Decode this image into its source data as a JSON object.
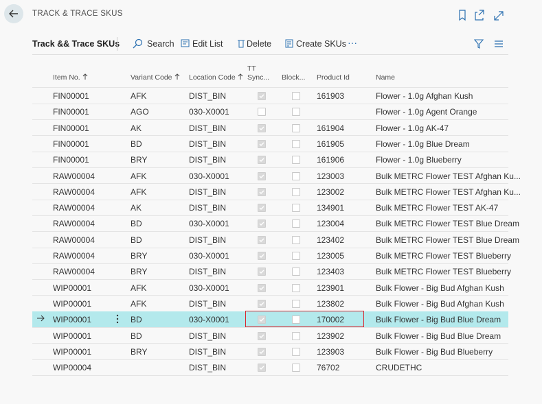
{
  "header": {
    "title": "TRACK & TRACE SKUS"
  },
  "toolbar": {
    "page_name": "Track && Trace SKUs",
    "actions": [
      "Search",
      "Edit List",
      "Delete",
      "Create SKUs"
    ]
  },
  "table": {
    "columns": [
      {
        "label": "Item No.",
        "sorted": true
      },
      {
        "label": "Variant Code",
        "sorted": true
      },
      {
        "label": "Location Code",
        "sorted": true
      },
      {
        "label": "TT Sync...",
        "sorted": false
      },
      {
        "label": "Block...",
        "sorted": false
      },
      {
        "label": "Product Id",
        "sorted": false
      },
      {
        "label": "Name",
        "sorted": false
      }
    ],
    "selected_row": 14,
    "rows": [
      [
        "FIN00001",
        "AFK",
        "DIST_BIN",
        true,
        false,
        "161903",
        "Flower - 1.0g Afghan Kush"
      ],
      [
        "FIN00001",
        "AGO",
        "030-X0001",
        false,
        false,
        null,
        "Flower - 1.0g Agent Orange"
      ],
      [
        "FIN00001",
        "AK",
        "DIST_BIN",
        true,
        false,
        "161904",
        "Flower - 1.0g AK-47"
      ],
      [
        "FIN00001",
        "BD",
        "DIST_BIN",
        true,
        false,
        "161905",
        "Flower - 1.0g Blue Dream"
      ],
      [
        "FIN00001",
        "BRY",
        "DIST_BIN",
        true,
        false,
        "161906",
        "Flower - 1.0g Blueberry"
      ],
      [
        "RAW00004",
        "AFK",
        "030-X0001",
        true,
        false,
        "123003",
        "Bulk METRC Flower TEST Afghan Ku..."
      ],
      [
        "RAW00004",
        "AFK",
        "DIST_BIN",
        true,
        false,
        "123002",
        "Bulk METRC Flower TEST Afghan Ku..."
      ],
      [
        "RAW00004",
        "AK",
        "DIST_BIN",
        true,
        false,
        "134901",
        "Bulk METRC Flower TEST AK-47"
      ],
      [
        "RAW00004",
        "BD",
        "030-X0001",
        true,
        false,
        "123004",
        "Bulk METRC Flower TEST Blue Dream"
      ],
      [
        "RAW00004",
        "BD",
        "DIST_BIN",
        true,
        false,
        "123402",
        "Bulk METRC Flower TEST Blue Dream"
      ],
      [
        "RAW00004",
        "BRY",
        "030-X0001",
        true,
        false,
        "123005",
        "Bulk METRC Flower TEST Blueberry"
      ],
      [
        "RAW00004",
        "BRY",
        "DIST_BIN",
        true,
        false,
        "123403",
        "Bulk METRC Flower TEST Blueberry"
      ],
      [
        "WIP00001",
        "AFK",
        "030-X0001",
        true,
        false,
        "123901",
        "Bulk Flower - Big Bud Afghan Kush"
      ],
      [
        "WIP00001",
        "AFK",
        "DIST_BIN",
        true,
        false,
        "123802",
        "Bulk Flower - Big Bud Afghan Kush"
      ],
      [
        "WIP00001",
        "BD",
        "030-X0001",
        true,
        false,
        "170002",
        "Bulk Flower - Big Bud Blue Dream"
      ],
      [
        "WIP00001",
        "BD",
        "DIST_BIN",
        true,
        false,
        "123902",
        "Bulk Flower - Big Bud Blue Dream"
      ],
      [
        "WIP00001",
        "BRY",
        "DIST_BIN",
        true,
        false,
        "123903",
        "Bulk Flower - Big Bud Blueberry"
      ],
      [
        "WIP00004",
        null,
        "DIST_BIN",
        true,
        false,
        "76702",
        "CRUDETHC"
      ]
    ]
  }
}
